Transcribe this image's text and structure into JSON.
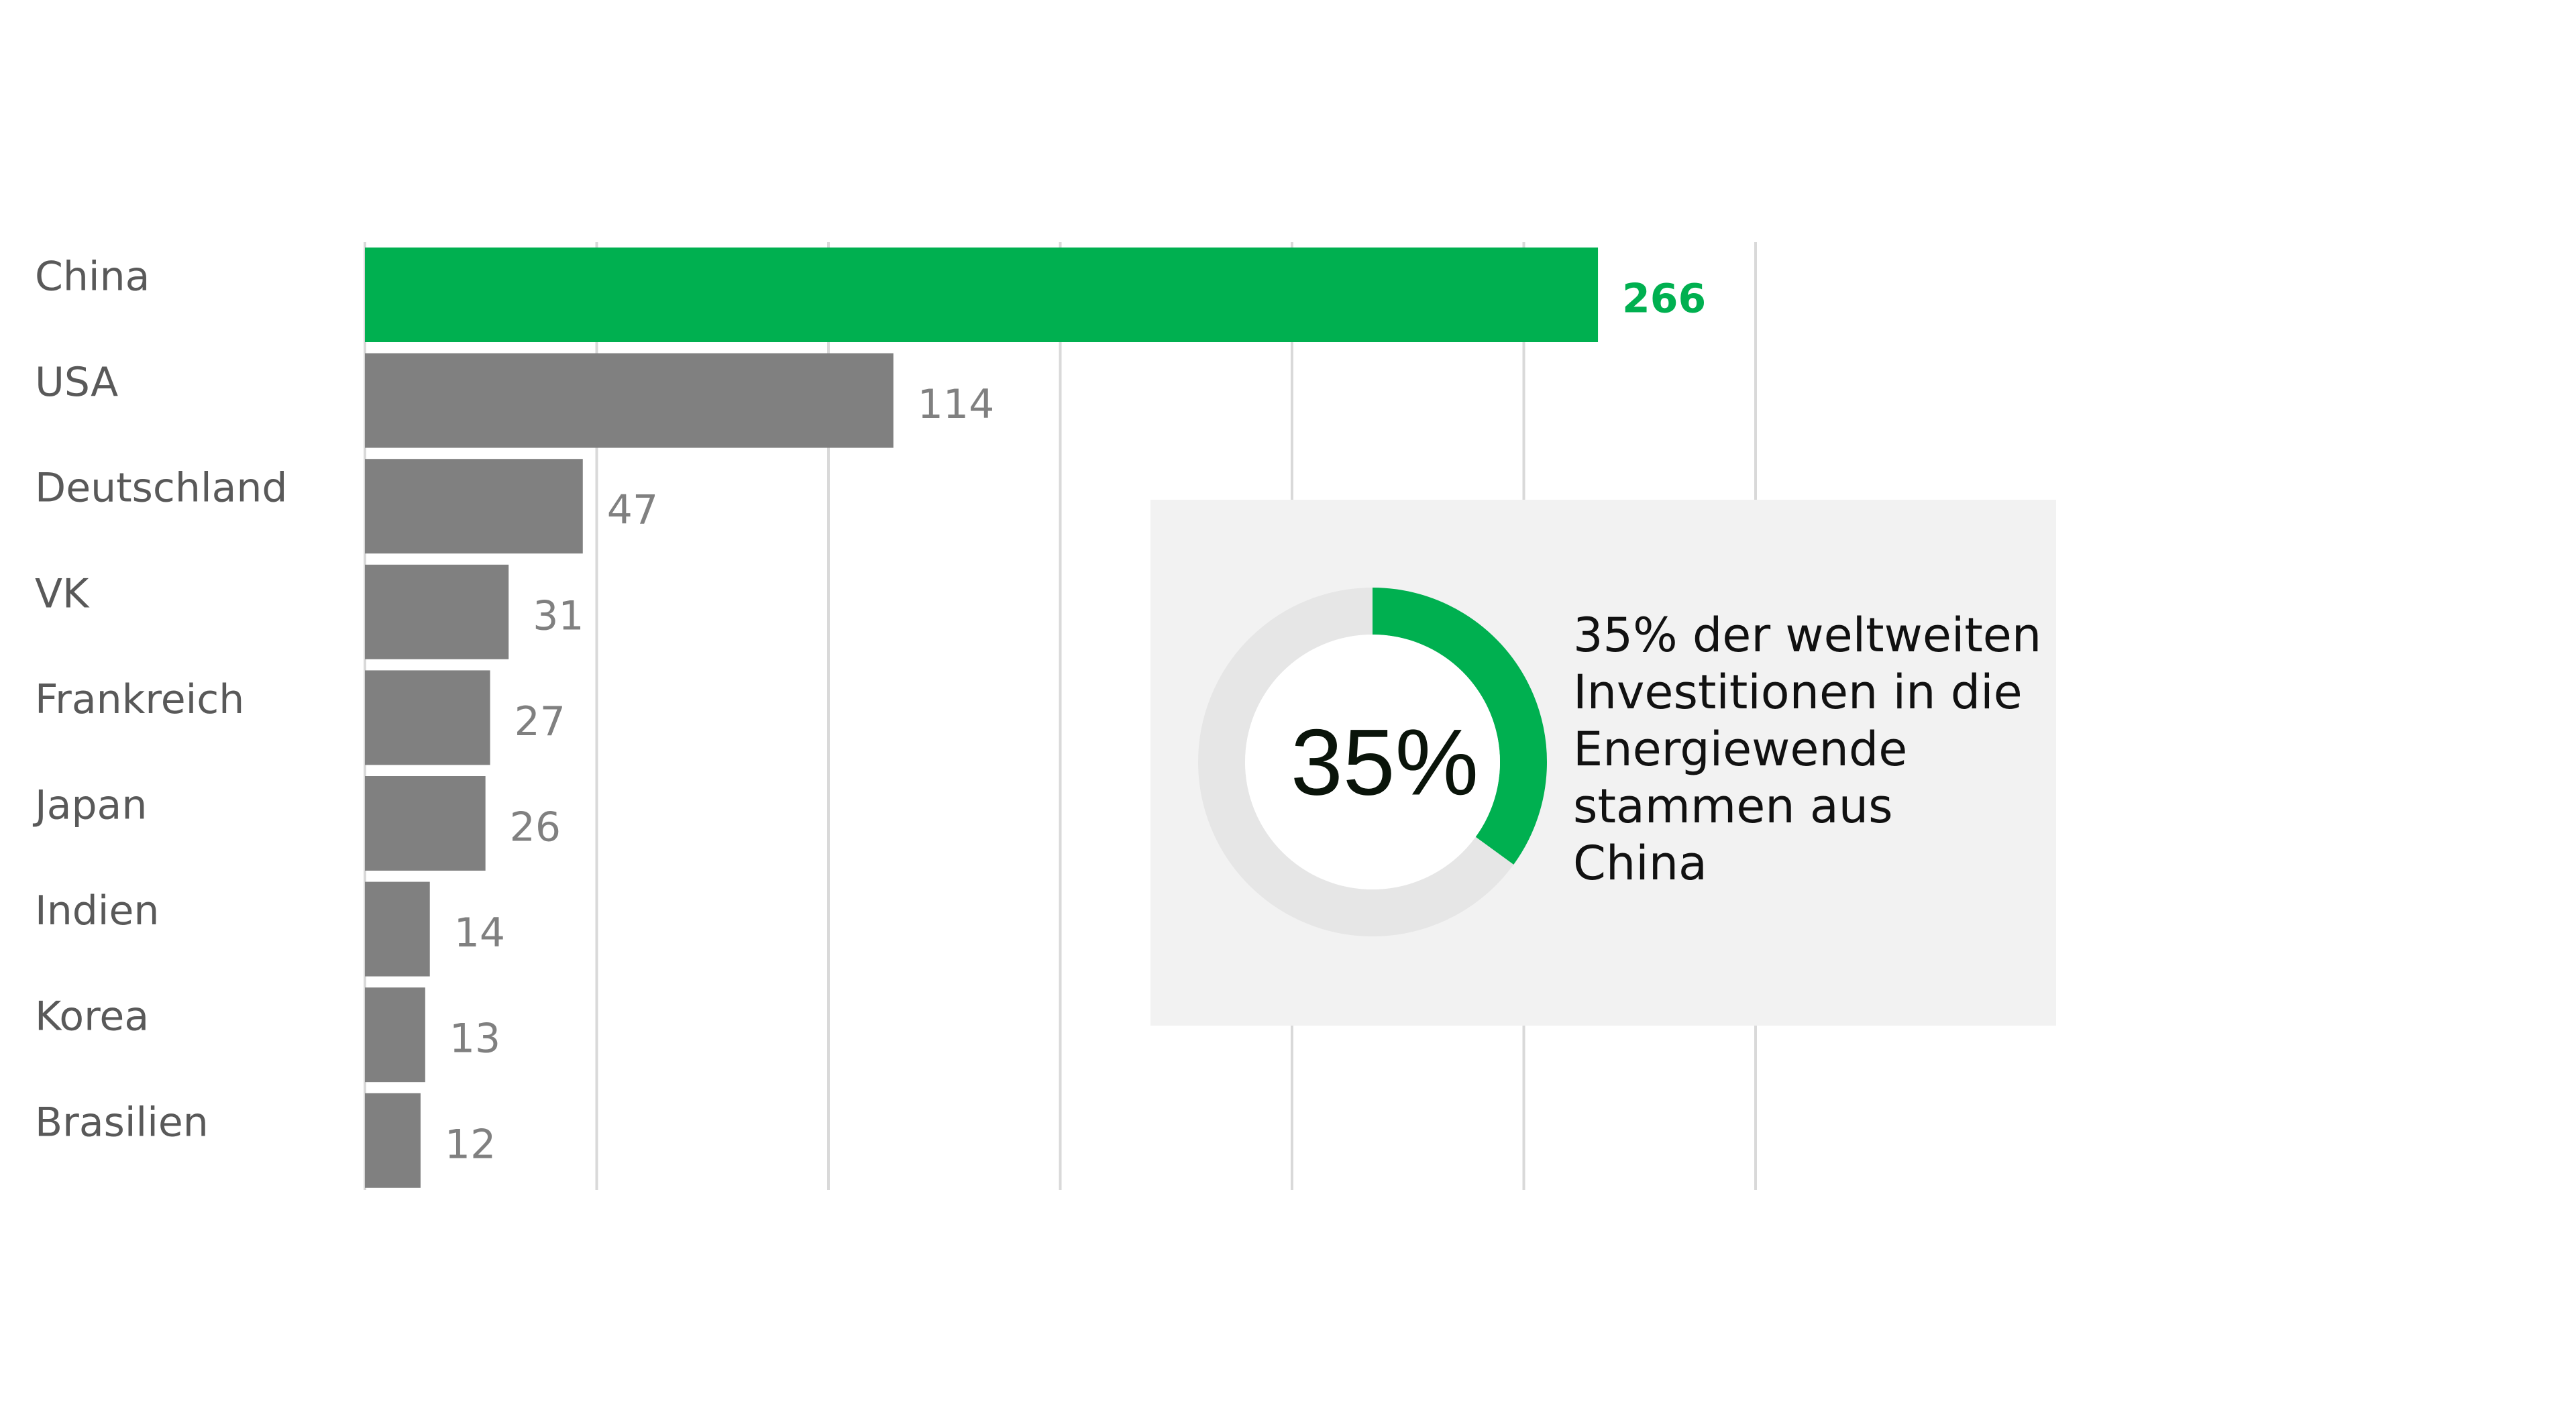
{
  "chart_data": {
    "type": "bar",
    "orientation": "horizontal",
    "categories": [
      "China",
      "USA",
      "Deutschland",
      "VK",
      "Frankreich",
      "Japan",
      "Indien",
      "Korea",
      "Brasilien"
    ],
    "values": [
      266,
      114,
      47,
      31,
      27,
      26,
      14,
      13,
      12
    ],
    "highlight_category": "China",
    "xlim": [
      0,
      300
    ],
    "grid_step": 50,
    "grid": true,
    "xlabel": "",
    "ylabel": "",
    "title": "",
    "colors": {
      "highlight": "#00b050",
      "default": "#808080",
      "grid": "#d9d9d9"
    }
  },
  "callout": {
    "percent_value": 35,
    "percent_label": "35%",
    "text_lines": [
      "35% der weltweiten",
      "Investitionen in die",
      "Energiewende",
      "stammen aus",
      "China"
    ],
    "colors": {
      "background": "#f2f2f2",
      "ring": "#e6e6e6",
      "fill": "#00b050"
    }
  }
}
